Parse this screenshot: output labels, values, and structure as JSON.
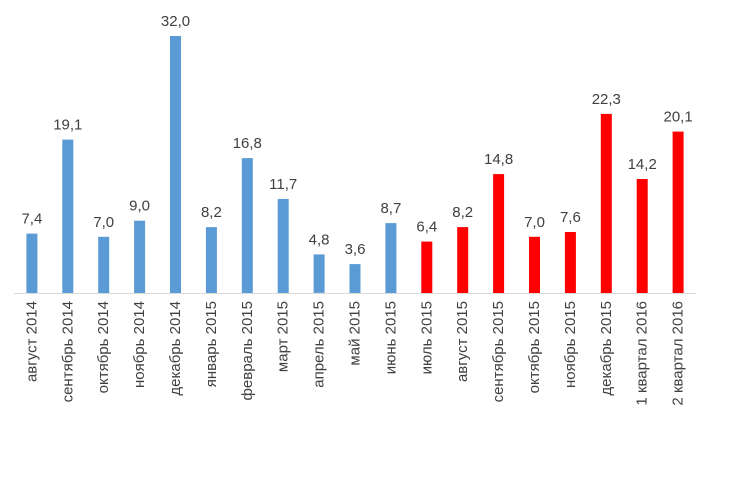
{
  "chart_data": {
    "type": "bar",
    "title": "",
    "xlabel": "",
    "ylabel": "",
    "ylim": [
      0,
      32
    ],
    "grid": false,
    "legend": "none",
    "colors": {
      "blue": "#5b9bd5",
      "red": "#ff0000",
      "axis": "#d9d9d9",
      "text": "#404040"
    },
    "categories": [
      "август 2014",
      "сентябрь 2014",
      "октябрь 2014",
      "ноябрь 2014",
      "декабрь 2014",
      "январь 2015",
      "февраль 2015",
      "март 2015",
      "апрель 2015",
      "май 2015",
      "июнь 2015",
      "июль 2015",
      "август 2015",
      "сентябрь 2015",
      "октябрь 2015",
      "ноябрь 2015",
      "декабрь 2015",
      "1 квартал 2016",
      "2 квартал 2016"
    ],
    "values": [
      7.4,
      19.1,
      7.0,
      9.0,
      32.0,
      8.2,
      16.8,
      11.7,
      4.8,
      3.6,
      8.7,
      6.4,
      8.2,
      14.8,
      7.0,
      7.6,
      22.3,
      14.2,
      20.1
    ],
    "value_labels": [
      "7,4",
      "19,1",
      "7,0",
      "9,0",
      "32,0",
      "8,2",
      "16,8",
      "11,7",
      "4,8",
      "3,6",
      "8,7",
      "6,4",
      "8,2",
      "14,8",
      "7,0",
      "7,6",
      "22,3",
      "14,2",
      "20,1"
    ],
    "bar_colors": [
      "blue",
      "blue",
      "blue",
      "blue",
      "blue",
      "blue",
      "blue",
      "blue",
      "blue",
      "blue",
      "blue",
      "red",
      "red",
      "red",
      "red",
      "red",
      "red",
      "red",
      "red"
    ]
  }
}
